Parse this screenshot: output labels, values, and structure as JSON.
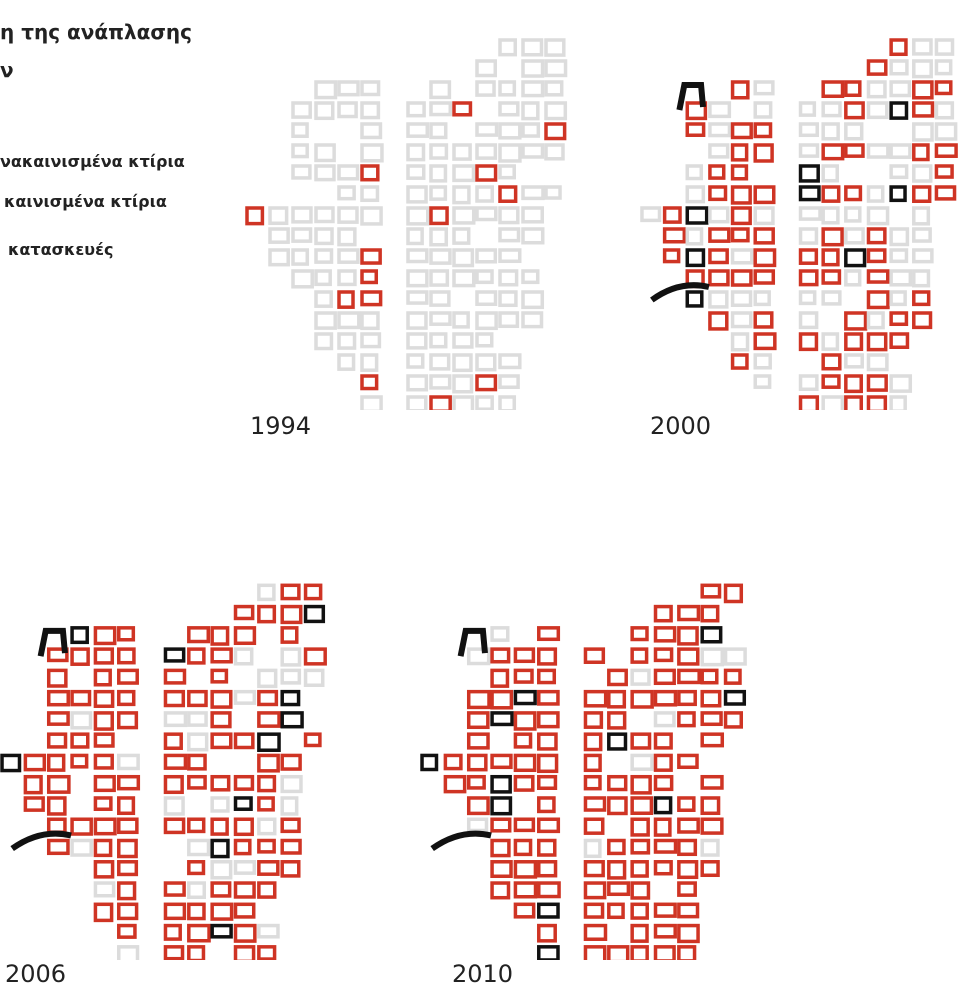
{
  "header": {
    "title_lines": [
      "η της ανάπλασης",
      "ν"
    ]
  },
  "legend": {
    "items": [
      "νακαινισμένα κτίρια",
      "καινισμένα κτίρια",
      "κατασκευές"
    ]
  },
  "maps": [
    {
      "year": "1994"
    },
    {
      "year": "2000"
    },
    {
      "year": "2006"
    },
    {
      "year": "2010"
    }
  ]
}
